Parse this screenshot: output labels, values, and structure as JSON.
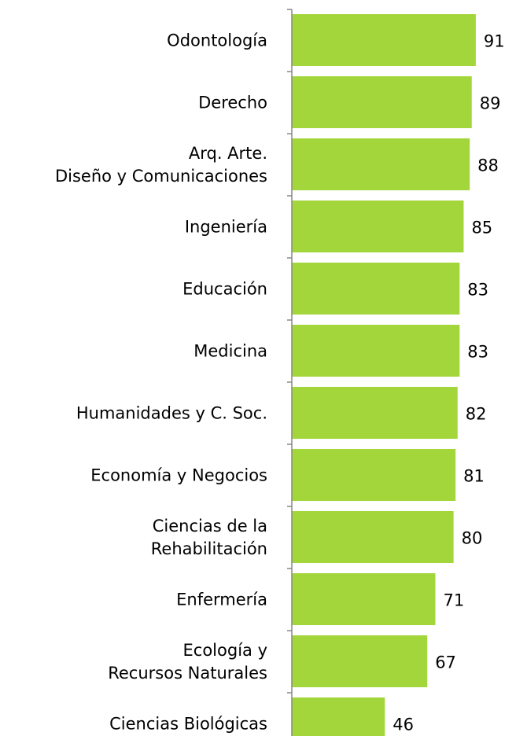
{
  "chart_data": {
    "type": "bar",
    "orientation": "horizontal",
    "categories": [
      "Odontología",
      "Derecho",
      "Arq. Arte.\nDiseño y Comunicaciones",
      "Ingeniería",
      "Educación",
      "Medicina",
      "Humanidades y C. Soc.",
      "Economía y Negocios",
      "Ciencias de la\nRehabilitación",
      "Enfermería",
      "Ecología y\nRecursos Naturales",
      "Ciencias Biológicas"
    ],
    "values": [
      91,
      89,
      88,
      85,
      83,
      83,
      82,
      81,
      80,
      71,
      67,
      46
    ],
    "color": "#a2d63a",
    "xlim": [
      0,
      100
    ]
  }
}
